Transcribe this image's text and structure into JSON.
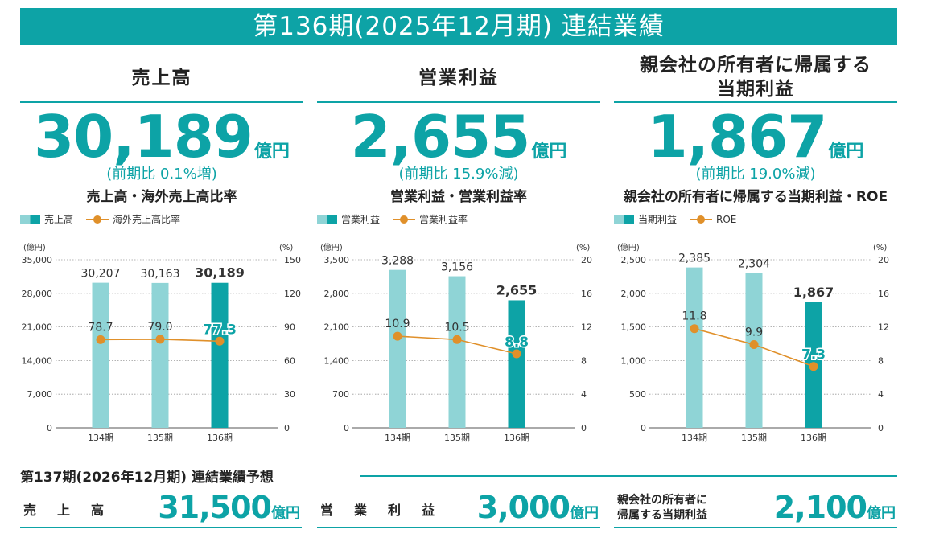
{
  "banner": "第136期(2025年12月期) 連結業績",
  "panels": [
    {
      "title": "売上高",
      "big_value": "30,189",
      "big_unit": "億円",
      "comparison": "(前期比 0.1%増)",
      "chart_title": "売上高・海外売上高比率",
      "legend_bar": "売上高",
      "legend_line": "海外売上高比率"
    },
    {
      "title": "営業利益",
      "big_value": "2,655",
      "big_unit": "億円",
      "comparison": "(前期比 15.9%減)",
      "chart_title": "営業利益・営業利益率",
      "legend_bar": "営業利益",
      "legend_line": "営業利益率"
    },
    {
      "title": "親会社の所有者に帰属する当期利益",
      "title_line1": "親会社の所有者に帰属する",
      "title_line2": "当期利益",
      "big_value": "1,867",
      "big_unit": "億円",
      "comparison": "(前期比 19.0%減)",
      "chart_title": "親会社の所有者に帰属する当期利益・ROE",
      "legend_bar": "当期利益",
      "legend_line": "ROE"
    }
  ],
  "chart_data": [
    {
      "type": "bar",
      "title": "売上高・海外売上高比率",
      "categories": [
        "134期",
        "135期",
        "136期"
      ],
      "ylabel": "(億円)",
      "y2label": "(%)",
      "ylim": [
        0,
        35000
      ],
      "y_ticks": [
        "0",
        "7,000",
        "14,000",
        "21,000",
        "28,000",
        "35,000"
      ],
      "y2lim": [
        0,
        150
      ],
      "y2_ticks": [
        "0",
        "30",
        "60",
        "90",
        "120",
        "150"
      ],
      "series": [
        {
          "name": "売上高",
          "type": "bar",
          "axis": "left",
          "values": [
            30207,
            30163,
            30189
          ],
          "labels": [
            "30,207",
            "30,163",
            "30,189"
          ]
        },
        {
          "name": "海外売上高比率",
          "type": "line",
          "axis": "right",
          "values": [
            78.7,
            79.0,
            77.3
          ],
          "labels": [
            "78.7",
            "79.0",
            "77.3"
          ]
        }
      ]
    },
    {
      "type": "bar",
      "title": "営業利益・営業利益率",
      "categories": [
        "134期",
        "135期",
        "136期"
      ],
      "ylabel": "(億円)",
      "y2label": "(%)",
      "ylim": [
        0,
        3500
      ],
      "y_ticks": [
        "0",
        "700",
        "1,400",
        "2,100",
        "2,800",
        "3,500"
      ],
      "y2lim": [
        0,
        20
      ],
      "y2_ticks": [
        "0",
        "4",
        "8",
        "12",
        "16",
        "20"
      ],
      "series": [
        {
          "name": "営業利益",
          "type": "bar",
          "axis": "left",
          "values": [
            3288,
            3156,
            2655
          ],
          "labels": [
            "3,288",
            "3,156",
            "2,655"
          ]
        },
        {
          "name": "営業利益率",
          "type": "line",
          "axis": "right",
          "values": [
            10.9,
            10.5,
            8.8
          ],
          "labels": [
            "10.9",
            "10.5",
            "8.8"
          ]
        }
      ]
    },
    {
      "type": "bar",
      "title": "親会社の所有者に帰属する当期利益・ROE",
      "categories": [
        "134期",
        "135期",
        "136期"
      ],
      "ylabel": "(億円)",
      "y2label": "(%)",
      "ylim": [
        0,
        2500
      ],
      "y_ticks": [
        "0",
        "500",
        "1,000",
        "1,500",
        "2,000",
        "2,500"
      ],
      "y2lim": [
        0,
        20
      ],
      "y2_ticks": [
        "0",
        "4",
        "8",
        "12",
        "16",
        "20"
      ],
      "series": [
        {
          "name": "当期利益",
          "type": "bar",
          "axis": "left",
          "values": [
            2385,
            2304,
            1867
          ],
          "labels": [
            "2,385",
            "2,304",
            "1,867"
          ]
        },
        {
          "name": "ROE",
          "type": "line",
          "axis": "right",
          "values": [
            11.8,
            9.9,
            7.3
          ],
          "labels": [
            "11.8",
            "9.9",
            "7.3"
          ]
        }
      ]
    }
  ],
  "forecast": {
    "heading": "第137期(2026年12月期) 連結業績予想",
    "items": [
      {
        "label": "売上高",
        "value": "31,500",
        "unit": "億円"
      },
      {
        "label": "営業利益",
        "value": "3,000",
        "unit": "億円"
      },
      {
        "label": "親会社の所有者に帰属する当期利益",
        "label_line1": "親会社の所有者に",
        "label_line2": "帰属する当期利益",
        "value": "2,100",
        "unit": "億円"
      }
    ]
  },
  "colors": {
    "teal": "#0da3a6",
    "bar_light": "#8fd4d6",
    "line": "#e0902a"
  }
}
